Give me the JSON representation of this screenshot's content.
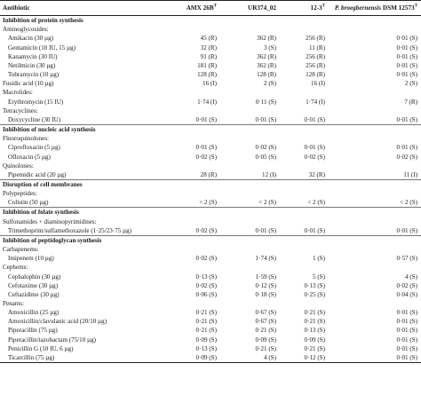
{
  "header": {
    "antibiotic": "Antibiotic",
    "col1": "AMX 26B",
    "col1_sup": "T",
    "col2": "UR374_02",
    "col3": "12-3",
    "col3_sup": "T",
    "col4_italic": "P. broegbernensis",
    "col4_rest": " DSM 12573",
    "col4_sup": "T"
  },
  "rows": [
    {
      "type": "section",
      "label": "Inhibition of protein synthesis"
    },
    {
      "type": "group",
      "label": "Aminoglycosides:"
    },
    {
      "type": "data",
      "label": "Amikacin (30 µg)",
      "v": [
        "45 (R)",
        "362 (R)",
        "256 (R)",
        "0·01 (S)"
      ]
    },
    {
      "type": "data",
      "label": "Gentamicin (10 IU, 15 µg)",
      "v": [
        "32 (R)",
        "3 (S)",
        "11 (R)",
        "0·01 (S)"
      ]
    },
    {
      "type": "data",
      "label": "Kanamycin (30 IU)",
      "v": [
        "91 (R)",
        "362 (R)",
        "256 (R)",
        "0·01 (S)"
      ]
    },
    {
      "type": "data",
      "label": "Netilmicin (30 µg)",
      "v": [
        "181 (R)",
        "362 (R)",
        "256 (R)",
        "0·01 (S)"
      ]
    },
    {
      "type": "data",
      "label": "Tobramycin (10 µg)",
      "v": [
        "128 (R)",
        "128 (R)",
        "128 (R)",
        "0·01 (S)"
      ]
    },
    {
      "type": "data",
      "label": "Fusidic acid (10 µg)",
      "flat": true,
      "v": [
        "16 (I)",
        "2 (S)",
        "16 (I)",
        "2 (S)"
      ]
    },
    {
      "type": "group",
      "label": "Macrolides:"
    },
    {
      "type": "data",
      "label": "Erythromycin (15 IU)",
      "v": [
        "1·74 (I)",
        "0·11 (S)",
        "1·74 (I)",
        "7 (R)"
      ]
    },
    {
      "type": "group",
      "label": "Tetracyclines:"
    },
    {
      "type": "data",
      "label": "Doxycycline (30 IU)",
      "v": [
        "0·01 (S)",
        "0·01 (S)",
        "0·01 (S)",
        "0·01 (S)"
      ]
    },
    {
      "type": "section",
      "label": "Inhibition of nucleic acid synthesis"
    },
    {
      "type": "group",
      "label": "Fluoroquinolones:"
    },
    {
      "type": "data",
      "label": "Ciprofloxacin (5 µg)",
      "v": [
        "0·01 (S)",
        "0·02 (S)",
        "0·01 (S)",
        "0·01 (S)"
      ]
    },
    {
      "type": "data",
      "label": "Ofloxacin (5 µg)",
      "v": [
        "0·02 (S)",
        "0·05 (S)",
        "0·02 (S)",
        "0·02 (S)"
      ]
    },
    {
      "type": "group",
      "label": "Quinolones:"
    },
    {
      "type": "data",
      "label": "Pipemidic acid (20 µg)",
      "v": [
        "28 (R)",
        "12 (I)",
        "32 (R)",
        "11 (I)"
      ]
    },
    {
      "type": "section",
      "label": "Disruption of cell membranes"
    },
    {
      "type": "group",
      "label": "Polypeptides:"
    },
    {
      "type": "data",
      "label": "Colistin (50 µg)",
      "v": [
        "< 2 (S)",
        "< 2 (S)",
        "< 2 (S)",
        "< 2 (S)"
      ]
    },
    {
      "type": "section",
      "label": "Inhibition of folate synthesis"
    },
    {
      "type": "group",
      "label": "Sulfonamides + diaminopyrimidines:"
    },
    {
      "type": "data",
      "label": "Trimethoprim/sulfamethoxazole (1·25/23·75 µg)",
      "v": [
        "0·02 (S)",
        "0·01 (S)",
        "0·01 (S)",
        "0·01 (S)"
      ]
    },
    {
      "type": "section",
      "label": "Inhibition of peptidoglycan synthesis"
    },
    {
      "type": "group",
      "label": "Carbapenems:"
    },
    {
      "type": "data",
      "label": "Imipenem (10 µg)",
      "v": [
        "0·02 (S)",
        "1·74 (S)",
        "1 (S)",
        "0·57 (S)"
      ]
    },
    {
      "type": "group",
      "label": "Cephems:"
    },
    {
      "type": "data",
      "label": "Cephalophin (30 µg)",
      "v": [
        "0·13 (S)",
        "1·59 (S)",
        "5 (S)",
        "4 (S)"
      ]
    },
    {
      "type": "data",
      "label": "Cefotaxime (30 µg)",
      "v": [
        "0·02 (S)",
        "0·12 (S)",
        "0·13 (S)",
        "0·02 (S)"
      ]
    },
    {
      "type": "data",
      "label": "Ceftazidime (30 µg)",
      "v": [
        "0·06 (S)",
        "0·18 (S)",
        "0·25 (S)",
        "0·04 (S)"
      ]
    },
    {
      "type": "group",
      "label": "Penams:"
    },
    {
      "type": "data",
      "label": "Amoxicillin (25 µg)",
      "v": [
        "0·21 (S)",
        "0·67 (S)",
        "0·21 (S)",
        "0·01 (S)"
      ]
    },
    {
      "type": "data",
      "label": "Amoxicillin/clavulanic acid (20/10 µg)",
      "v": [
        "0·21 (S)",
        "0·67 (S)",
        "0·21 (S)",
        "0·01 (S)"
      ]
    },
    {
      "type": "data",
      "label": "Piperacillin (75 µg)",
      "v": [
        "0·21 (S)",
        "0·21 (S)",
        "0·13 (S)",
        "0·01 (S)"
      ]
    },
    {
      "type": "data",
      "label": "Piperacillin/tazobactam (75/10 µg)",
      "v": [
        "0·09 (S)",
        "0·09 (S)",
        "0·09 (S)",
        "0·01 (S)"
      ]
    },
    {
      "type": "data",
      "label": "Penicillin G (10 IU, 6 µg)",
      "v": [
        "0·13 (S)",
        "0·21 (S)",
        "0·21 (S)",
        "0·01 (S)"
      ]
    },
    {
      "type": "data",
      "label": "Ticarcillin (75 µg)",
      "v": [
        "0·09 (S)",
        "4 (S)",
        "0·12 (S)",
        "0·01 (S)"
      ]
    }
  ]
}
